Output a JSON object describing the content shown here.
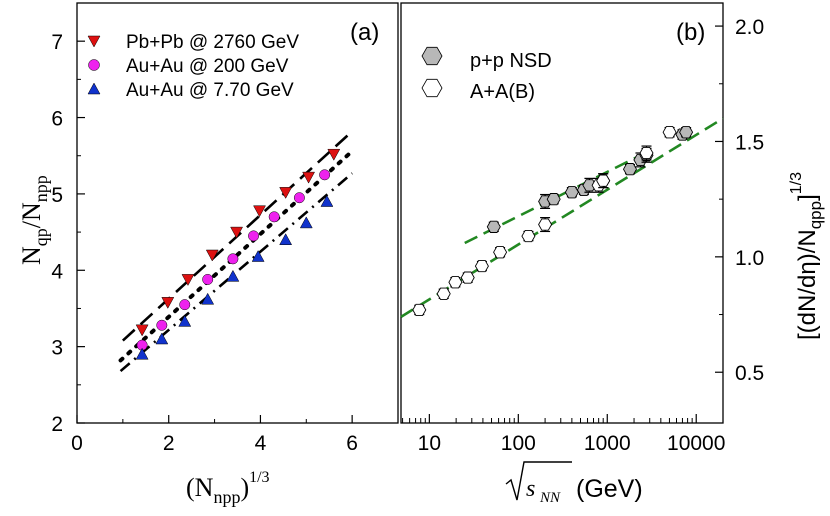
{
  "chart_data": [
    {
      "panel": "(a)",
      "type": "scatter",
      "xlabel_base": "(N",
      "xlabel_sub": "npp",
      "xlabel_close": ")",
      "xlabel_sup": "1/3",
      "ylabel_base": "N",
      "ylabel_sub1": "qp",
      "ylabel_mid": "/N",
      "ylabel_sub2": "npp",
      "xlim": [
        0,
        7
      ],
      "ylim": [
        2,
        7.5
      ],
      "xticks": [
        0,
        2,
        4,
        6
      ],
      "yticks": [
        2,
        3,
        4,
        5,
        6,
        7
      ],
      "legend": [
        {
          "name": "Pb+Pb @ 2760  GeV",
          "marker": "triangle-down",
          "color": "#dd1111"
        },
        {
          "name": "Au+Au @ 200   GeV",
          "marker": "circle",
          "color": "#ee22ee"
        },
        {
          "name": "Au+Au @ 7.70  GeV",
          "marker": "triangle-up",
          "color": "#1133cc"
        }
      ],
      "series": [
        {
          "name": "Pb+Pb @ 2760  GeV",
          "marker": "triangle-down",
          "color": "#dd1111",
          "x": [
            1.42,
            1.98,
            2.42,
            2.95,
            3.48,
            3.98,
            4.55,
            5.05,
            5.6
          ],
          "y": [
            3.22,
            3.58,
            3.88,
            4.2,
            4.5,
            4.78,
            5.02,
            5.22,
            5.52
          ]
        },
        {
          "name": "Au+Au @ 200   GeV",
          "marker": "circle",
          "color": "#ee22ee",
          "x": [
            1.42,
            1.85,
            2.35,
            2.85,
            3.4,
            3.85,
            4.3,
            4.85,
            5.4
          ],
          "y": [
            3.02,
            3.28,
            3.55,
            3.88,
            4.15,
            4.45,
            4.7,
            4.95,
            5.25
          ]
        },
        {
          "name": "Au+Au @ 7.70  GeV",
          "marker": "triangle-up",
          "color": "#1133cc",
          "x": [
            1.42,
            1.85,
            2.35,
            2.85,
            3.4,
            3.95,
            4.55,
            5.0,
            5.45
          ],
          "y": [
            2.9,
            3.1,
            3.33,
            3.62,
            3.92,
            4.18,
            4.4,
            4.62,
            4.9
          ]
        }
      ],
      "fit_lines": [
        {
          "style": "dashed",
          "x": [
            1.0,
            6.0
          ],
          "y": [
            3.08,
            5.82
          ]
        },
        {
          "style": "dotted",
          "x": [
            0.95,
            6.0
          ],
          "y": [
            2.82,
            5.56
          ]
        },
        {
          "style": "dash-dot",
          "x": [
            0.95,
            6.0
          ],
          "y": [
            2.68,
            5.27
          ]
        }
      ]
    },
    {
      "panel": "(b)",
      "type": "scatter",
      "xscale": "log",
      "xlabel_sqrt": "s",
      "xlabel_sub": "NN",
      "xlabel_unit": "(GeV)",
      "ylabel_base": "[(dN/dη)/N",
      "ylabel_sub": "qpp",
      "ylabel_close": "]",
      "ylabel_sup": "1/3",
      "xlim": [
        4.8,
        20000
      ],
      "ylim": [
        0.28,
        2.1
      ],
      "xticks": [
        10,
        100,
        1000,
        10000
      ],
      "xtick_labels": [
        "10",
        "100",
        "1000",
        "10000"
      ],
      "yticks": [
        0.5,
        1.0,
        1.5,
        2.0
      ],
      "ytick_labels": [
        "0.5",
        "1.0",
        "1.5",
        "2.0"
      ],
      "legend": [
        {
          "name": "p+p NSD",
          "marker": "hexagon",
          "fill": "#b8b8b8"
        },
        {
          "name": "A+A(B)",
          "marker": "hexagon",
          "fill": "#ffffff"
        }
      ],
      "series": [
        {
          "name": "p+p NSD",
          "marker": "hexagon",
          "fill": "#b8b8b8",
          "x": [
            53,
            200,
            250,
            400,
            546,
            630,
            900,
            1800,
            2360,
            2760,
            7000,
            7700
          ],
          "y": [
            1.13,
            1.24,
            1.25,
            1.28,
            1.29,
            1.31,
            1.33,
            1.38,
            1.42,
            1.44,
            1.53,
            1.54
          ],
          "err": [
            0.02,
            0.03,
            0.02,
            0.02,
            0.02,
            0.03,
            0.03,
            0.02,
            0.03,
            0.03,
            0.02,
            0.02
          ]
        },
        {
          "name": "A+A(B)",
          "marker": "hexagon",
          "fill": "#ffffff",
          "x": [
            7.7,
            14.5,
            19.6,
            27,
            39,
            62.4,
            130,
            200,
            800,
            900,
            2760,
            5020
          ],
          "y": [
            0.77,
            0.84,
            0.89,
            0.91,
            0.96,
            1.02,
            1.09,
            1.14,
            1.31,
            1.33,
            1.45,
            1.54
          ],
          "err": [
            0.02,
            0.02,
            0.02,
            0.02,
            0.02,
            0.02,
            0.02,
            0.03,
            0.03,
            0.03,
            0.03,
            0.02
          ]
        }
      ],
      "fit_lines": [
        {
          "style": "dashed",
          "color": "#228822",
          "x": [
            4.8,
            20000
          ],
          "y": [
            0.74,
            1.6
          ]
        },
        {
          "style": "dashed",
          "color": "#228822",
          "x": [
            25,
            3000
          ],
          "y": [
            1.06,
            1.46
          ]
        }
      ]
    }
  ]
}
